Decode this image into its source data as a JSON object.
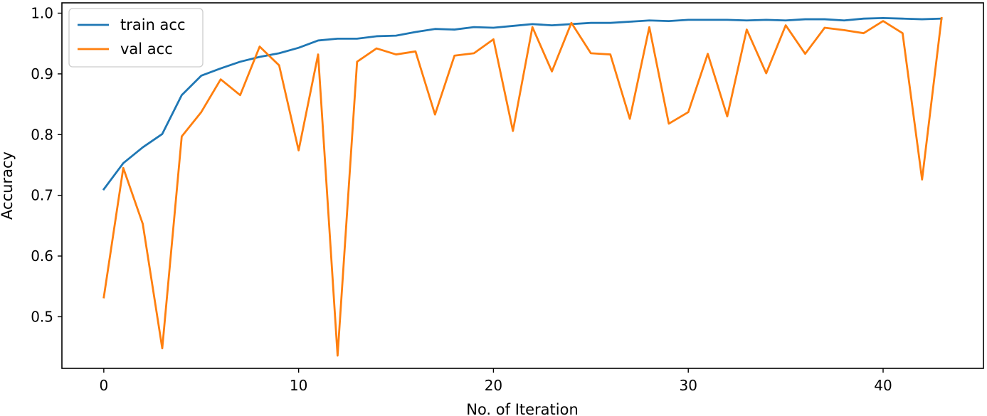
{
  "chart_data": {
    "type": "line",
    "title": "",
    "xlabel": "No. of Iteration",
    "ylabel": "Accuracy",
    "xlim": [
      -2.15,
      45.15
    ],
    "ylim": [
      0.415,
      1.017
    ],
    "xticks": [
      0,
      10,
      20,
      30,
      40
    ],
    "yticks": [
      0.5,
      0.6,
      0.7,
      0.8,
      0.9,
      1.0
    ],
    "ytick_labels": [
      "0.5",
      "0.6",
      "0.7",
      "0.8",
      "0.9",
      "1.0"
    ],
    "grid": false,
    "legend": "top-left",
    "x": [
      0,
      1,
      2,
      3,
      4,
      5,
      6,
      7,
      8,
      9,
      10,
      11,
      12,
      13,
      14,
      15,
      16,
      17,
      18,
      19,
      20,
      21,
      22,
      23,
      24,
      25,
      26,
      27,
      28,
      29,
      30,
      31,
      32,
      33,
      34,
      35,
      36,
      37,
      38,
      39,
      40,
      41,
      42,
      43
    ],
    "series": [
      {
        "name": "train acc",
        "color": "#1f77b4",
        "values": [
          0.71,
          0.753,
          0.779,
          0.801,
          0.865,
          0.897,
          0.909,
          0.92,
          0.928,
          0.934,
          0.943,
          0.955,
          0.958,
          0.958,
          0.962,
          0.963,
          0.969,
          0.974,
          0.973,
          0.977,
          0.976,
          0.979,
          0.982,
          0.98,
          0.982,
          0.984,
          0.984,
          0.986,
          0.988,
          0.987,
          0.989,
          0.989,
          0.989,
          0.988,
          0.989,
          0.988,
          0.99,
          0.99,
          0.988,
          0.991,
          0.992,
          0.991,
          0.99,
          0.991
        ]
      },
      {
        "name": "val acc",
        "color": "#ff7f0e",
        "values": [
          0.532,
          0.745,
          0.653,
          0.448,
          0.797,
          0.837,
          0.891,
          0.865,
          0.945,
          0.914,
          0.774,
          0.932,
          0.436,
          0.92,
          0.942,
          0.932,
          0.937,
          0.833,
          0.93,
          0.934,
          0.957,
          0.806,
          0.977,
          0.904,
          0.984,
          0.934,
          0.932,
          0.826,
          0.977,
          0.818,
          0.837,
          0.933,
          0.83,
          0.973,
          0.901,
          0.98,
          0.933,
          0.976,
          0.972,
          0.967,
          0.987,
          0.967,
          0.726,
          0.992
        ]
      }
    ]
  }
}
